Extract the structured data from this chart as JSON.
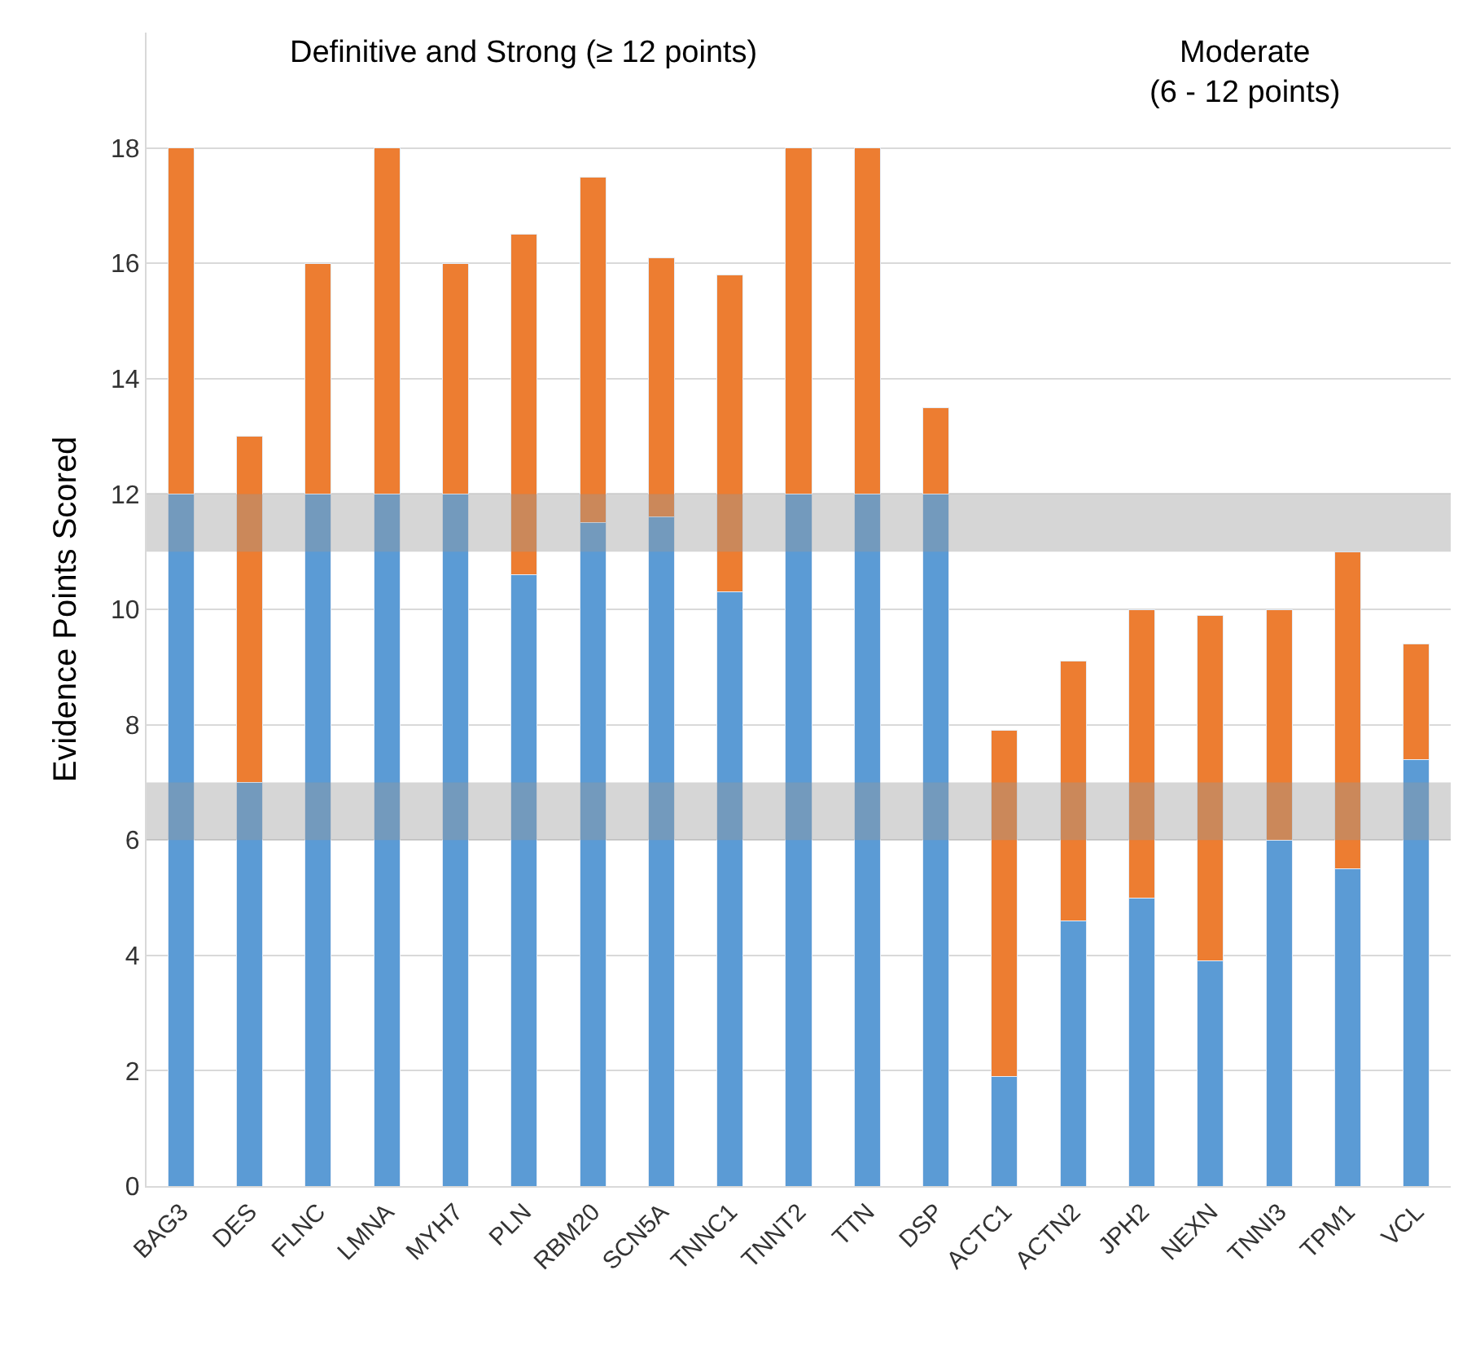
{
  "chart_data": {
    "type": "bar",
    "stacked": true,
    "ylabel": "Evidence Points Scored",
    "categories": [
      "BAG3",
      "DES",
      "FLNC",
      "LMNA",
      "MYH7",
      "PLN",
      "RBM20",
      "SCN5A",
      "TNNC1",
      "TNNT2",
      "TTN",
      "DSP",
      "ACTC1",
      "ACTN2",
      "JPH2",
      "NEXN",
      "TNNI3",
      "TPM1",
      "VCL"
    ],
    "series": [
      {
        "color": "#5b9bd5",
        "values": [
          12,
          7,
          12,
          12,
          12,
          10.6,
          11.5,
          11.6,
          10.3,
          12,
          12,
          12,
          1.9,
          4.6,
          5,
          3.9,
          6,
          5.5,
          7.4
        ]
      },
      {
        "color": "#ed7d31",
        "values": [
          6,
          6,
          4,
          6,
          4,
          5.9,
          6,
          4.5,
          5.5,
          6,
          6,
          1.5,
          6,
          4.5,
          5,
          6,
          4,
          5.5,
          2
        ]
      }
    ],
    "ylim": [
      0,
      20
    ],
    "yticks": [
      0,
      2,
      4,
      6,
      8,
      10,
      12,
      14,
      16,
      18
    ],
    "grid": "y",
    "bands": [
      {
        "axis": "y",
        "from": 11,
        "to": 12,
        "color": "#999999"
      },
      {
        "axis": "y",
        "from": 6,
        "to": 7,
        "color": "#999999"
      }
    ],
    "annotations": [
      "Definitive and Strong (≥ 12 points)",
      "Moderate\n(6 - 12 points)"
    ]
  }
}
